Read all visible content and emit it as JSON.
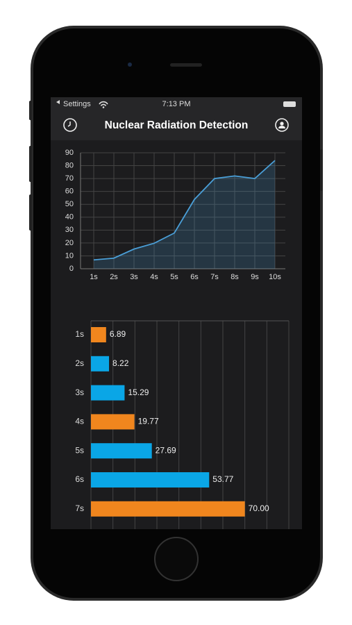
{
  "status_bar": {
    "back": "Settings",
    "time": "7:13 PM"
  },
  "header": {
    "title": "Nuclear Radiation Detection"
  },
  "chart_data": [
    {
      "type": "line",
      "categories": [
        "1s",
        "2s",
        "3s",
        "4s",
        "5s",
        "6s",
        "7s",
        "8s",
        "9s",
        "10s"
      ],
      "values": [
        6.89,
        8.22,
        15.29,
        19.77,
        27.69,
        53.77,
        70,
        72,
        70,
        84
      ],
      "color": "#4a9fd8",
      "ylim": [
        0,
        90
      ],
      "yticks": [
        0,
        10,
        20,
        30,
        40,
        50,
        60,
        70,
        80,
        90
      ],
      "grid": true
    },
    {
      "type": "hbar",
      "categories": [
        "1s",
        "2s",
        "3s",
        "4s",
        "5s",
        "6s",
        "7s"
      ],
      "values": [
        6.89,
        8.22,
        15.29,
        19.77,
        27.69,
        53.77,
        70
      ],
      "value_labels": [
        "6.89",
        "8.22",
        "15.29",
        "19.77",
        "27.69",
        "53.77",
        "70.00"
      ],
      "colors": [
        "#f0861e",
        "#0aa6e6",
        "#0aa6e6",
        "#f0861e",
        "#0aa6e6",
        "#0aa6e6",
        "#f0861e"
      ],
      "xlim": [
        0,
        90
      ],
      "xticks": [
        0,
        10,
        20,
        30,
        40,
        50,
        60,
        70,
        80,
        90
      ],
      "grid": true
    }
  ]
}
